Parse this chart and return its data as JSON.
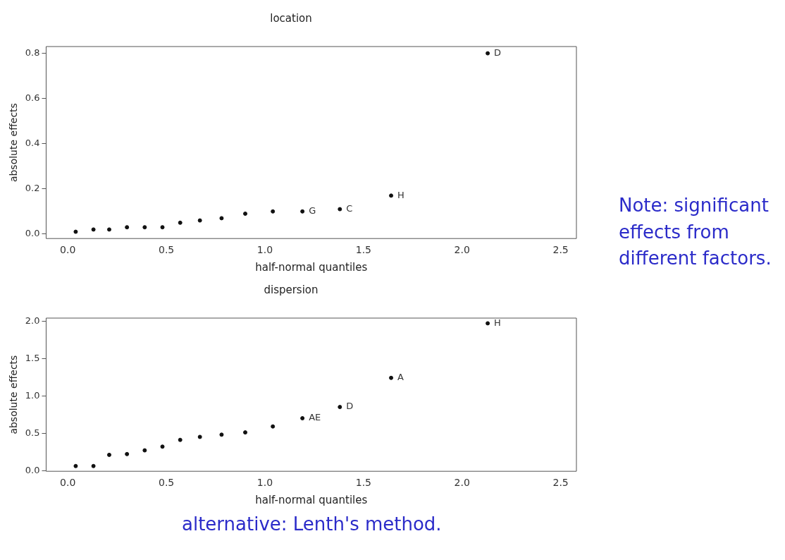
{
  "chart_data": [
    {
      "type": "scatter",
      "title": "location",
      "xlabel": "half-normal quantiles",
      "ylabel": "absolute effects",
      "marker": "circle",
      "x": [
        0.04,
        0.13,
        0.21,
        0.3,
        0.39,
        0.48,
        0.57,
        0.67,
        0.78,
        0.9,
        1.04,
        1.19,
        1.38,
        1.64,
        2.13
      ],
      "series": [
        {
          "color": "#111111",
          "values": [
            0.01,
            0.02,
            0.02,
            0.03,
            0.03,
            0.03,
            0.05,
            0.06,
            0.07,
            0.09,
            0.1,
            0.1,
            0.11,
            0.17,
            0.8
          ]
        }
      ],
      "xlim": [
        -0.11,
        2.58
      ],
      "xticks": [
        {
          "value": 0,
          "label": "0.0"
        },
        0.5,
        {
          "value": 1,
          "label": "1.0"
        },
        1.5,
        {
          "value": 2,
          "label": "2.0"
        },
        2.5
      ],
      "ylim": [
        -0.02,
        0.83
      ],
      "yticks": [
        {
          "value": 0,
          "label": "0.0"
        },
        0.2,
        0.4,
        0.6,
        0.8
      ],
      "annotations": [
        {
          "text": "G",
          "x": 1.19,
          "y": 0.1
        },
        {
          "text": "C",
          "x": 1.38,
          "y": 0.11
        },
        {
          "text": "H",
          "x": 1.64,
          "y": 0.17
        },
        {
          "text": "D",
          "x": 2.13,
          "y": 0.8
        },
        "Note: significant effects from different factors."
      ]
    },
    {
      "type": "scatter",
      "title": "dispersion",
      "xlabel": "half-normal quantiles",
      "ylabel": "absolute effects",
      "marker": "circle",
      "x": [
        0.04,
        0.13,
        0.21,
        0.3,
        0.39,
        0.48,
        0.57,
        0.67,
        0.78,
        0.9,
        1.04,
        1.19,
        1.38,
        1.64,
        2.13
      ],
      "series": [
        {
          "color": "#111111",
          "values": [
            0.06,
            0.06,
            0.21,
            0.22,
            0.27,
            0.32,
            0.41,
            0.45,
            0.48,
            0.51,
            0.59,
            0.7,
            0.85,
            1.24,
            1.97
          ]
        }
      ],
      "xlim": [
        -0.11,
        2.58
      ],
      "xticks": [
        {
          "value": 0,
          "label": "0.0"
        },
        0.5,
        {
          "value": 1,
          "label": "1.0"
        },
        1.5,
        {
          "value": 2,
          "label": "2.0"
        },
        2.5
      ],
      "ylim": [
        -0.01,
        2.04
      ],
      "yticks": [
        {
          "value": 0,
          "label": "0.0"
        },
        0.5,
        {
          "value": 1,
          "label": "1.0"
        },
        1.5,
        {
          "value": 2,
          "label": "2.0"
        }
      ],
      "annotations": [
        {
          "text": "AE",
          "x": 1.19,
          "y": 0.7
        },
        {
          "text": "D",
          "x": 1.38,
          "y": 0.85
        },
        {
          "text": "A",
          "x": 1.64,
          "y": 1.24
        },
        {
          "text": "H",
          "x": 2.13,
          "y": 1.97
        },
        "alternative: Lenth's method."
      ]
    }
  ]
}
